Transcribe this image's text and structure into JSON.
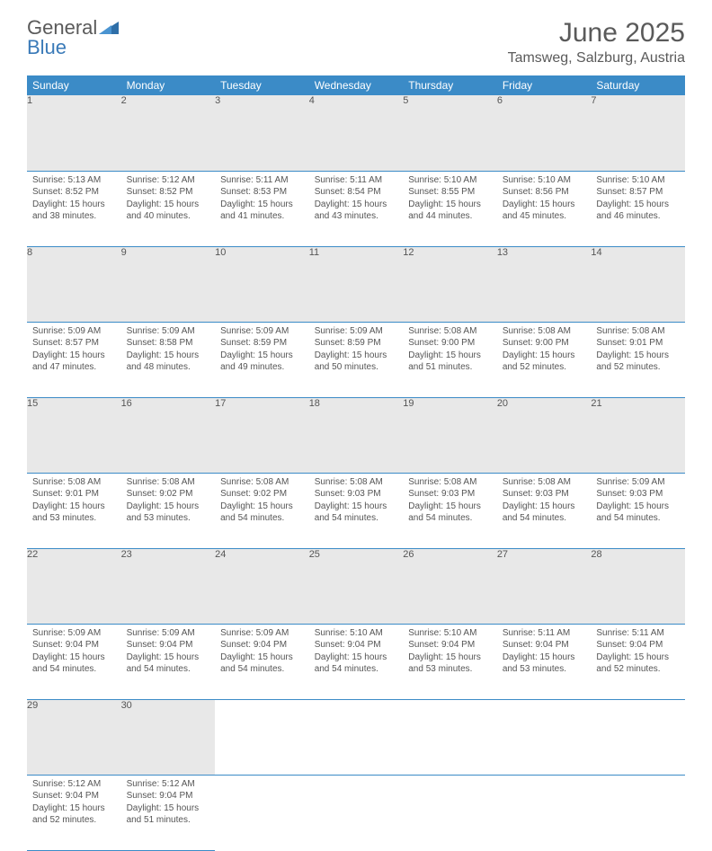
{
  "brand": {
    "word1": "General",
    "word2": "Blue"
  },
  "title": "June 2025",
  "location": "Tamsweg, Salzburg, Austria",
  "colors": {
    "header_bg": "#3b8bc7",
    "header_text": "#ffffff",
    "daynum_bg": "#e8e8e8",
    "text": "#555555",
    "rule": "#3b8bc7"
  },
  "daynames": [
    "Sunday",
    "Monday",
    "Tuesday",
    "Wednesday",
    "Thursday",
    "Friday",
    "Saturday"
  ],
  "weeks": [
    [
      {
        "n": "1",
        "sr": "5:13 AM",
        "ss": "8:52 PM",
        "dh": "15",
        "dm": "38"
      },
      {
        "n": "2",
        "sr": "5:12 AM",
        "ss": "8:52 PM",
        "dh": "15",
        "dm": "40"
      },
      {
        "n": "3",
        "sr": "5:11 AM",
        "ss": "8:53 PM",
        "dh": "15",
        "dm": "41"
      },
      {
        "n": "4",
        "sr": "5:11 AM",
        "ss": "8:54 PM",
        "dh": "15",
        "dm": "43"
      },
      {
        "n": "5",
        "sr": "5:10 AM",
        "ss": "8:55 PM",
        "dh": "15",
        "dm": "44"
      },
      {
        "n": "6",
        "sr": "5:10 AM",
        "ss": "8:56 PM",
        "dh": "15",
        "dm": "45"
      },
      {
        "n": "7",
        "sr": "5:10 AM",
        "ss": "8:57 PM",
        "dh": "15",
        "dm": "46"
      }
    ],
    [
      {
        "n": "8",
        "sr": "5:09 AM",
        "ss": "8:57 PM",
        "dh": "15",
        "dm": "47"
      },
      {
        "n": "9",
        "sr": "5:09 AM",
        "ss": "8:58 PM",
        "dh": "15",
        "dm": "48"
      },
      {
        "n": "10",
        "sr": "5:09 AM",
        "ss": "8:59 PM",
        "dh": "15",
        "dm": "49"
      },
      {
        "n": "11",
        "sr": "5:09 AM",
        "ss": "8:59 PM",
        "dh": "15",
        "dm": "50"
      },
      {
        "n": "12",
        "sr": "5:08 AM",
        "ss": "9:00 PM",
        "dh": "15",
        "dm": "51"
      },
      {
        "n": "13",
        "sr": "5:08 AM",
        "ss": "9:00 PM",
        "dh": "15",
        "dm": "52"
      },
      {
        "n": "14",
        "sr": "5:08 AM",
        "ss": "9:01 PM",
        "dh": "15",
        "dm": "52"
      }
    ],
    [
      {
        "n": "15",
        "sr": "5:08 AM",
        "ss": "9:01 PM",
        "dh": "15",
        "dm": "53"
      },
      {
        "n": "16",
        "sr": "5:08 AM",
        "ss": "9:02 PM",
        "dh": "15",
        "dm": "53"
      },
      {
        "n": "17",
        "sr": "5:08 AM",
        "ss": "9:02 PM",
        "dh": "15",
        "dm": "54"
      },
      {
        "n": "18",
        "sr": "5:08 AM",
        "ss": "9:03 PM",
        "dh": "15",
        "dm": "54"
      },
      {
        "n": "19",
        "sr": "5:08 AM",
        "ss": "9:03 PM",
        "dh": "15",
        "dm": "54"
      },
      {
        "n": "20",
        "sr": "5:08 AM",
        "ss": "9:03 PM",
        "dh": "15",
        "dm": "54"
      },
      {
        "n": "21",
        "sr": "5:09 AM",
        "ss": "9:03 PM",
        "dh": "15",
        "dm": "54"
      }
    ],
    [
      {
        "n": "22",
        "sr": "5:09 AM",
        "ss": "9:04 PM",
        "dh": "15",
        "dm": "54"
      },
      {
        "n": "23",
        "sr": "5:09 AM",
        "ss": "9:04 PM",
        "dh": "15",
        "dm": "54"
      },
      {
        "n": "24",
        "sr": "5:09 AM",
        "ss": "9:04 PM",
        "dh": "15",
        "dm": "54"
      },
      {
        "n": "25",
        "sr": "5:10 AM",
        "ss": "9:04 PM",
        "dh": "15",
        "dm": "54"
      },
      {
        "n": "26",
        "sr": "5:10 AM",
        "ss": "9:04 PM",
        "dh": "15",
        "dm": "53"
      },
      {
        "n": "27",
        "sr": "5:11 AM",
        "ss": "9:04 PM",
        "dh": "15",
        "dm": "53"
      },
      {
        "n": "28",
        "sr": "5:11 AM",
        "ss": "9:04 PM",
        "dh": "15",
        "dm": "52"
      }
    ],
    [
      {
        "n": "29",
        "sr": "5:12 AM",
        "ss": "9:04 PM",
        "dh": "15",
        "dm": "52"
      },
      {
        "n": "30",
        "sr": "5:12 AM",
        "ss": "9:04 PM",
        "dh": "15",
        "dm": "51"
      },
      null,
      null,
      null,
      null,
      null
    ]
  ],
  "labels": {
    "sunrise": "Sunrise: ",
    "sunset": "Sunset: ",
    "daylight1": "Daylight: ",
    "daylight2": " hours and ",
    "daylight3": " minutes."
  }
}
